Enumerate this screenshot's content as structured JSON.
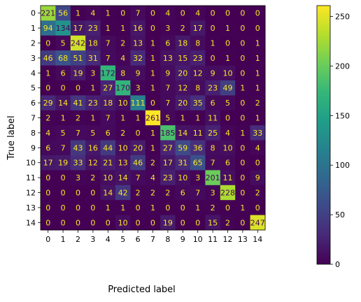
{
  "chart_data": {
    "type": "heatmap",
    "title": "",
    "xlabel": "Predicted label",
    "ylabel": "True label",
    "x_categories": [
      "0",
      "1",
      "2",
      "3",
      "4",
      "5",
      "6",
      "7",
      "8",
      "9",
      "10",
      "11",
      "12",
      "13",
      "14"
    ],
    "y_categories": [
      "0",
      "1",
      "2",
      "3",
      "4",
      "5",
      "6",
      "7",
      "8",
      "9",
      "10",
      "11",
      "12",
      "13",
      "14"
    ],
    "matrix": [
      [
        221,
        56,
        1,
        4,
        1,
        0,
        7,
        0,
        4,
        0,
        4,
        0,
        0,
        0,
        0
      ],
      [
        94,
        134,
        17,
        23,
        1,
        1,
        16,
        0,
        3,
        2,
        17,
        0,
        1,
        0,
        0
      ],
      [
        0,
        5,
        242,
        18,
        7,
        2,
        13,
        1,
        6,
        18,
        8,
        1,
        0,
        0,
        1
      ],
      [
        46,
        68,
        51,
        31,
        7,
        4,
        32,
        1,
        13,
        15,
        23,
        0,
        1,
        0,
        1
      ],
      [
        1,
        6,
        19,
        3,
        172,
        8,
        9,
        1,
        9,
        20,
        12,
        9,
        10,
        0,
        1
      ],
      [
        0,
        0,
        0,
        1,
        27,
        170,
        3,
        1,
        7,
        12,
        8,
        23,
        49,
        1,
        1
      ],
      [
        29,
        14,
        41,
        23,
        18,
        10,
        111,
        0,
        7,
        20,
        35,
        6,
        5,
        0,
        2
      ],
      [
        2,
        1,
        2,
        1,
        7,
        1,
        1,
        261,
        5,
        1,
        1,
        11,
        0,
        0,
        1
      ],
      [
        4,
        5,
        7,
        5,
        6,
        2,
        0,
        1,
        185,
        14,
        11,
        25,
        4,
        1,
        33
      ],
      [
        6,
        7,
        43,
        16,
        44,
        10,
        20,
        1,
        27,
        59,
        36,
        8,
        10,
        0,
        4
      ],
      [
        17,
        19,
        33,
        12,
        21,
        13,
        46,
        2,
        17,
        31,
        65,
        7,
        6,
        0,
        0
      ],
      [
        0,
        0,
        3,
        2,
        10,
        14,
        7,
        4,
        23,
        10,
        3,
        201,
        11,
        0,
        9
      ],
      [
        0,
        0,
        0,
        0,
        14,
        42,
        2,
        2,
        2,
        6,
        7,
        3,
        228,
        0,
        2
      ],
      [
        0,
        0,
        0,
        0,
        1,
        1,
        0,
        1,
        0,
        0,
        1,
        2,
        0,
        1,
        0
      ],
      [
        0,
        0,
        0,
        0,
        0,
        10,
        0,
        0,
        19,
        0,
        0,
        15,
        2,
        0,
        247
      ]
    ],
    "colormap": "viridis",
    "color_range": [
      0,
      261
    ],
    "colorbar_ticks": [
      0,
      50,
      100,
      150,
      200,
      250
    ],
    "colorbar_tick_labels": [
      "0",
      "50",
      "100",
      "150",
      "200",
      "250"
    ],
    "text_color_dark_cells": "#fde725",
    "text_color_light_cells": "#440154",
    "grid": false
  }
}
